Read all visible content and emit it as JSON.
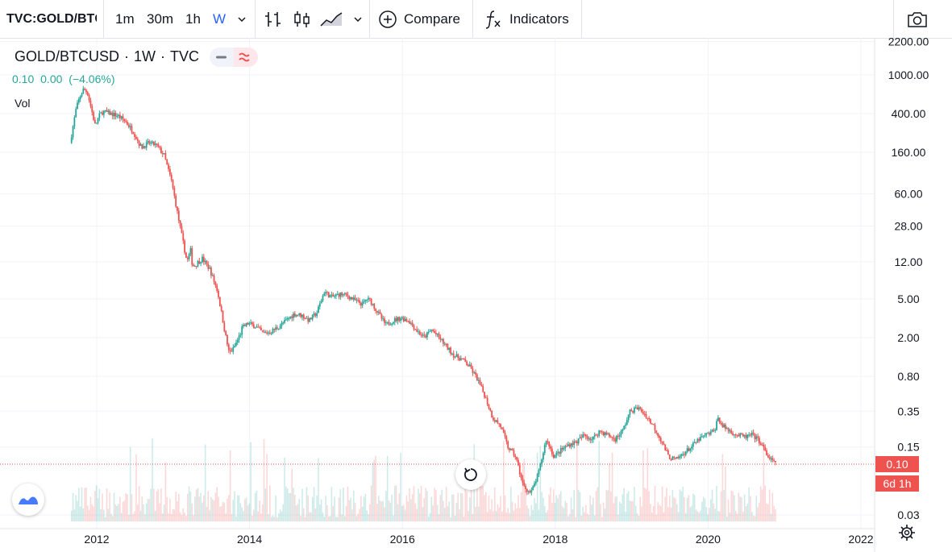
{
  "toolbar": {
    "symbol": "TVC:GOLD/BTCUSD",
    "intervals": [
      "1m",
      "30m",
      "1h",
      "W"
    ],
    "active_interval": "W",
    "compare_label": "Compare",
    "indicators_label": "Indicators",
    "icons": [
      "chevron-down-icon",
      "bar-chart-icon",
      "candles-icon",
      "area-chart-icon",
      "plus-circle-icon",
      "fx-icon",
      "camera-icon"
    ]
  },
  "legend": {
    "symbol": "GOLD/BTCUSD",
    "interval": "1W",
    "exchange": "TVC",
    "values": [
      "0.10",
      "0.00",
      "(−4.06%)"
    ],
    "vol_label": "Vol"
  },
  "price_axis": {
    "last_price": "0.10",
    "countdown": "6d 1h"
  },
  "colors": {
    "up": "#26a69a",
    "down": "#ef5350",
    "accent": "#2962ff"
  },
  "chart_data": {
    "type": "line",
    "title": "GOLD/BTCUSD",
    "xlabel": "",
    "ylabel": "",
    "y_scale": "log",
    "ylim": [
      0.02,
      2500
    ],
    "xlim": [
      2011.0,
      2022.5
    ],
    "y_ticks": [
      2200,
      1000,
      400,
      160,
      60,
      28,
      12,
      5,
      2,
      0.8,
      0.35,
      0.15,
      0.03
    ],
    "x_ticks": [
      2012,
      2014,
      2016,
      2018,
      2020,
      2022
    ],
    "grid": true,
    "series": [
      {
        "values_x": [
          2011.67,
          2011.75,
          2011.8,
          2011.85,
          2011.9,
          2012.0,
          2012.05,
          2012.1,
          2012.2,
          2012.3,
          2012.4,
          2012.5,
          2012.6,
          2012.7,
          2012.8,
          2012.9,
          2013.0,
          2013.1,
          2013.2,
          2013.25,
          2013.27,
          2013.3,
          2013.35,
          2013.4,
          2013.5,
          2013.6,
          2013.7,
          2013.75,
          2013.8,
          2013.85,
          2013.9,
          2013.92,
          2014.0,
          2014.1,
          2014.2,
          2014.3,
          2014.4,
          2014.5,
          2014.6,
          2014.7,
          2014.8,
          2014.9,
          2015.0,
          2015.05,
          2015.1,
          2015.2,
          2015.3,
          2015.4,
          2015.5,
          2015.55,
          2015.6,
          2015.7,
          2015.8,
          2015.9,
          2016.0,
          2016.1,
          2016.2,
          2016.3,
          2016.4,
          2016.5,
          2016.6,
          2016.7,
          2016.8,
          2016.9,
          2017.0,
          2017.1,
          2017.2,
          2017.3,
          2017.4,
          2017.5,
          2017.6,
          2017.7,
          2017.8,
          2017.85,
          2017.9,
          2017.95,
          2018.0,
          2018.1,
          2018.2,
          2018.3,
          2018.4,
          2018.5,
          2018.6,
          2018.7,
          2018.8,
          2018.9,
          2019.0,
          2019.1,
          2019.2,
          2019.3,
          2019.4,
          2019.5,
          2019.6,
          2019.7,
          2019.8,
          2019.9,
          2020.0,
          2020.1,
          2020.15,
          2020.2,
          2020.3,
          2020.4,
          2020.5,
          2020.6,
          2020.7,
          2020.8,
          2020.9
        ],
        "values": [
          200,
          450,
          600,
          720,
          650,
          300,
          380,
          420,
          400,
          380,
          330,
          260,
          180,
          200,
          190,
          150,
          80,
          30,
          12,
          16,
          11,
          11,
          12,
          13,
          10,
          6,
          2.2,
          1.4,
          1.5,
          1.8,
          2.2,
          2.5,
          2.8,
          2.6,
          2.2,
          2.3,
          2.6,
          3.0,
          3.5,
          3.4,
          3.0,
          3.6,
          6.0,
          5.5,
          5.2,
          5.6,
          5.4,
          4.8,
          4.4,
          5.0,
          4.8,
          3.6,
          2.7,
          3.0,
          3.2,
          3.0,
          2.4,
          2.0,
          2.4,
          2.0,
          1.6,
          1.3,
          1.2,
          1.0,
          0.75,
          0.5,
          0.3,
          0.25,
          0.15,
          0.12,
          0.06,
          0.05,
          0.08,
          0.12,
          0.18,
          0.15,
          0.12,
          0.14,
          0.16,
          0.17,
          0.2,
          0.18,
          0.22,
          0.2,
          0.18,
          0.22,
          0.35,
          0.38,
          0.32,
          0.25,
          0.18,
          0.12,
          0.11,
          0.13,
          0.15,
          0.18,
          0.2,
          0.22,
          0.3,
          0.25,
          0.22,
          0.2,
          0.19,
          0.2,
          0.17,
          0.12,
          0.1
        ]
      }
    ]
  }
}
